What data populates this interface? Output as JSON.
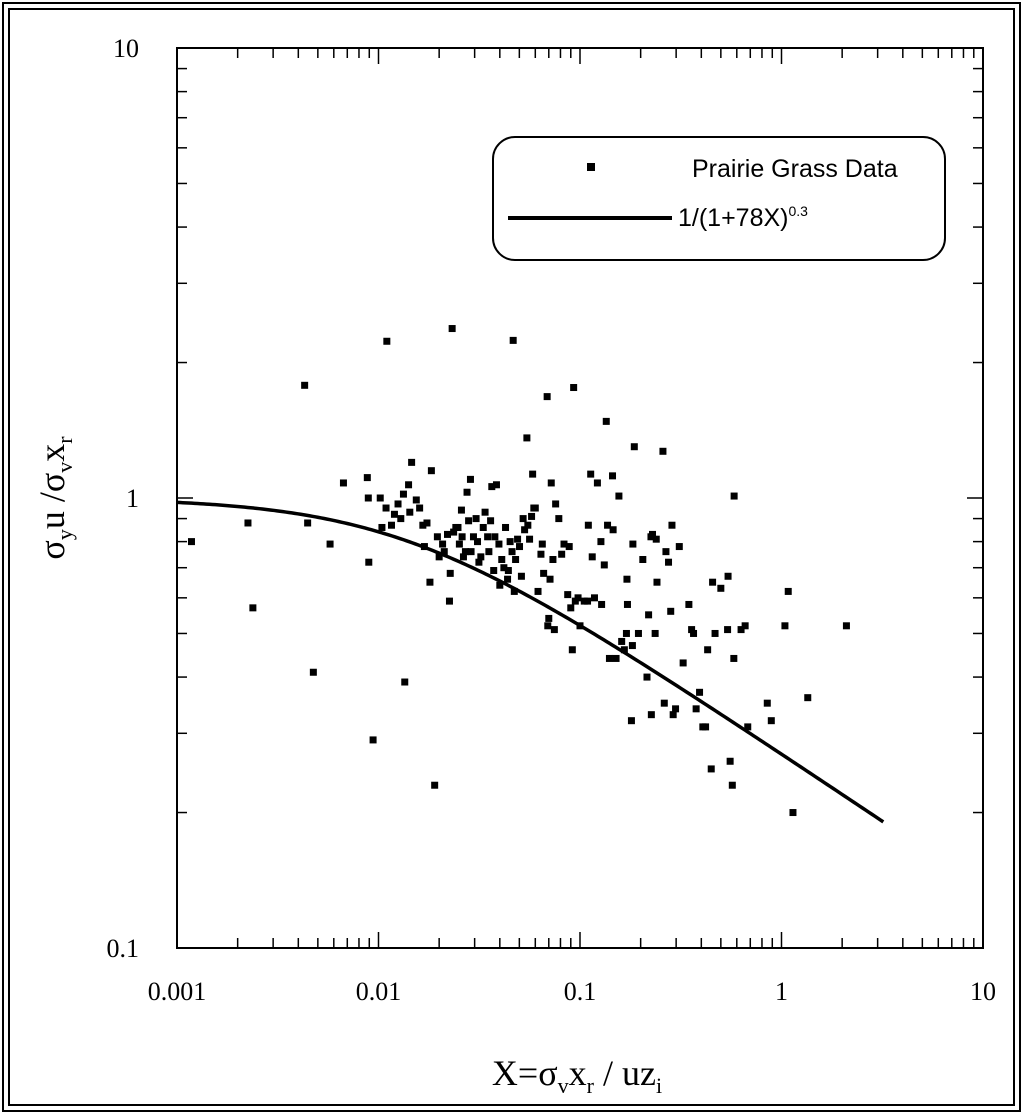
{
  "chart_data": {
    "type": "scatter",
    "xlabel": {
      "base": "X=σ",
      "s1": "v",
      "mid": "x",
      "s2": "r",
      "rest": " / uz",
      "s3": "i"
    },
    "ylabel": {
      "a": "σ",
      "as": "y",
      "b": "u /σ",
      "bs": "v",
      "c": "x",
      "cs": "r"
    },
    "xscale": "log",
    "yscale": "log",
    "xlim": [
      0.001,
      10
    ],
    "ylim": [
      0.1,
      10
    ],
    "xticks": [
      "0.001",
      "0.01",
      "0.1",
      "1",
      "10"
    ],
    "yticks": [
      "0.1",
      "1",
      "10"
    ],
    "legend": {
      "position": "top-right",
      "points_label": "Prairie Grass Data",
      "curve_label_base": "1/(1+78X)",
      "curve_label_exp": "0.3"
    },
    "curve": {
      "a": 78,
      "p": 0.3,
      "x_range": [
        0.001,
        3.2
      ]
    },
    "points": [
      [
        0.00118,
        0.8
      ],
      [
        0.00225,
        0.88
      ],
      [
        0.00238,
        0.57
      ],
      [
        0.0043,
        1.78
      ],
      [
        0.00445,
        0.88
      ],
      [
        0.00475,
        0.41
      ],
      [
        0.00575,
        0.79
      ],
      [
        0.0067,
        1.08
      ],
      [
        0.0088,
        1.11
      ],
      [
        0.0089,
        1.0
      ],
      [
        0.00895,
        0.72
      ],
      [
        0.0094,
        0.29
      ],
      [
        0.0102,
        1.0
      ],
      [
        0.0104,
        0.86
      ],
      [
        0.0109,
        0.95
      ],
      [
        0.011,
        2.23
      ],
      [
        0.0116,
        0.87
      ],
      [
        0.012,
        0.92
      ],
      [
        0.0125,
        0.97
      ],
      [
        0.0129,
        0.9
      ],
      [
        0.0133,
        1.02
      ],
      [
        0.0135,
        0.39
      ],
      [
        0.0141,
        1.07
      ],
      [
        0.0143,
        0.93
      ],
      [
        0.0146,
        1.2
      ],
      [
        0.0154,
        0.99
      ],
      [
        0.016,
        0.95
      ],
      [
        0.0166,
        0.87
      ],
      [
        0.0169,
        0.78
      ],
      [
        0.0174,
        0.88
      ],
      [
        0.018,
        0.65
      ],
      [
        0.0183,
        1.15
      ],
      [
        0.019,
        0.23
      ],
      [
        0.0196,
        0.82
      ],
      [
        0.02,
        0.74
      ],
      [
        0.0208,
        0.79
      ],
      [
        0.0212,
        0.76
      ],
      [
        0.022,
        0.83
      ],
      [
        0.0225,
        0.59
      ],
      [
        0.0227,
        0.68
      ],
      [
        0.0232,
        2.38
      ],
      [
        0.0236,
        0.84
      ],
      [
        0.0242,
        0.86
      ],
      [
        0.0248,
        0.86
      ],
      [
        0.0252,
        0.79
      ],
      [
        0.0258,
        0.94
      ],
      [
        0.026,
        0.82
      ],
      [
        0.0264,
        0.74
      ],
      [
        0.027,
        0.76
      ],
      [
        0.0275,
        1.03
      ],
      [
        0.028,
        0.89
      ],
      [
        0.0286,
        1.1
      ],
      [
        0.0288,
        0.76
      ],
      [
        0.0296,
        0.82
      ],
      [
        0.0305,
        0.9
      ],
      [
        0.031,
        0.8
      ],
      [
        0.0315,
        0.72
      ],
      [
        0.0322,
        0.74
      ],
      [
        0.0331,
        0.86
      ],
      [
        0.0338,
        0.93
      ],
      [
        0.0348,
        0.82
      ],
      [
        0.0353,
        0.76
      ],
      [
        0.036,
        0.89
      ],
      [
        0.0365,
        1.06
      ],
      [
        0.0373,
        0.69
      ],
      [
        0.0378,
        0.82
      ],
      [
        0.0385,
        1.07
      ],
      [
        0.0396,
        0.79
      ],
      [
        0.04,
        0.64
      ],
      [
        0.0409,
        0.73
      ],
      [
        0.0419,
        0.7
      ],
      [
        0.0427,
        0.86
      ],
      [
        0.0437,
        0.66
      ],
      [
        0.0441,
        0.69
      ],
      [
        0.045,
        0.8
      ],
      [
        0.046,
        0.76
      ],
      [
        0.0466,
        2.24
      ],
      [
        0.0472,
        0.62
      ],
      [
        0.0479,
        0.73
      ],
      [
        0.049,
        0.81
      ],
      [
        0.0501,
        0.78
      ],
      [
        0.0512,
        0.67
      ],
      [
        0.0522,
        0.9
      ],
      [
        0.0531,
        0.85
      ],
      [
        0.0545,
        1.36
      ],
      [
        0.0551,
        0.87
      ],
      [
        0.0562,
        0.81
      ],
      [
        0.0575,
        0.91
      ],
      [
        0.0582,
        1.13
      ],
      [
        0.059,
        0.95
      ],
      [
        0.06,
        0.95
      ],
      [
        0.0619,
        0.62
      ],
      [
        0.064,
        0.75
      ],
      [
        0.065,
        0.79
      ],
      [
        0.066,
        0.68
      ],
      [
        0.0687,
        1.68
      ],
      [
        0.0692,
        0.52
      ],
      [
        0.07,
        0.54
      ],
      [
        0.071,
        0.66
      ],
      [
        0.072,
        1.08
      ],
      [
        0.0734,
        0.73
      ],
      [
        0.0746,
        0.51
      ],
      [
        0.0757,
        0.97
      ],
      [
        0.0785,
        0.9
      ],
      [
        0.0811,
        0.75
      ],
      [
        0.0833,
        0.79
      ],
      [
        0.0869,
        0.61
      ],
      [
        0.0884,
        0.78
      ],
      [
        0.09,
        0.57
      ],
      [
        0.0916,
        0.46
      ],
      [
        0.093,
        1.76
      ],
      [
        0.0948,
        0.59
      ],
      [
        0.0978,
        0.6
      ],
      [
        0.1,
        0.52
      ],
      [
        0.105,
        0.59
      ],
      [
        0.109,
        0.59
      ],
      [
        0.11,
        0.87
      ],
      [
        0.113,
        1.13
      ],
      [
        0.115,
        0.74
      ],
      [
        0.118,
        0.6
      ],
      [
        0.122,
        1.08
      ],
      [
        0.127,
        0.8
      ],
      [
        0.128,
        0.58
      ],
      [
        0.132,
        0.71
      ],
      [
        0.135,
        1.48
      ],
      [
        0.137,
        0.87
      ],
      [
        0.14,
        0.44
      ],
      [
        0.145,
        1.12
      ],
      [
        0.146,
        0.85
      ],
      [
        0.151,
        0.44
      ],
      [
        0.156,
        1.01
      ],
      [
        0.161,
        0.48
      ],
      [
        0.166,
        0.46
      ],
      [
        0.17,
        0.5
      ],
      [
        0.171,
        0.66
      ],
      [
        0.172,
        0.58
      ],
      [
        0.18,
        0.32
      ],
      [
        0.182,
        0.47
      ],
      [
        0.183,
        0.79
      ],
      [
        0.186,
        1.3
      ],
      [
        0.195,
        0.5
      ],
      [
        0.205,
        0.73
      ],
      [
        0.215,
        0.4
      ],
      [
        0.219,
        0.55
      ],
      [
        0.225,
        0.82
      ],
      [
        0.226,
        0.33
      ],
      [
        0.229,
        0.83
      ],
      [
        0.236,
        0.5
      ],
      [
        0.239,
        0.81
      ],
      [
        0.241,
        0.65
      ],
      [
        0.258,
        1.27
      ],
      [
        0.262,
        0.35
      ],
      [
        0.267,
        0.76
      ],
      [
        0.275,
        0.72
      ],
      [
        0.282,
        0.56
      ],
      [
        0.286,
        0.87
      ],
      [
        0.29,
        0.33
      ],
      [
        0.298,
        0.34
      ],
      [
        0.311,
        0.78
      ],
      [
        0.325,
        0.43
      ],
      [
        0.347,
        0.58
      ],
      [
        0.358,
        0.51
      ],
      [
        0.366,
        0.5
      ],
      [
        0.377,
        0.34
      ],
      [
        0.392,
        0.37
      ],
      [
        0.407,
        0.31
      ],
      [
        0.42,
        0.31
      ],
      [
        0.43,
        0.46
      ],
      [
        0.448,
        0.25
      ],
      [
        0.455,
        0.65
      ],
      [
        0.468,
        0.5
      ],
      [
        0.5,
        0.63
      ],
      [
        0.54,
        0.51
      ],
      [
        0.543,
        0.67
      ],
      [
        0.556,
        0.26
      ],
      [
        0.57,
        0.23
      ],
      [
        0.58,
        0.44
      ],
      [
        0.582,
        1.01
      ],
      [
        0.63,
        0.51
      ],
      [
        0.66,
        0.52
      ],
      [
        0.68,
        0.31
      ],
      [
        0.85,
        0.35
      ],
      [
        0.89,
        0.32
      ],
      [
        1.04,
        0.52
      ],
      [
        1.08,
        0.62
      ],
      [
        1.14,
        0.2
      ],
      [
        1.35,
        0.36
      ],
      [
        2.1,
        0.52
      ]
    ]
  }
}
